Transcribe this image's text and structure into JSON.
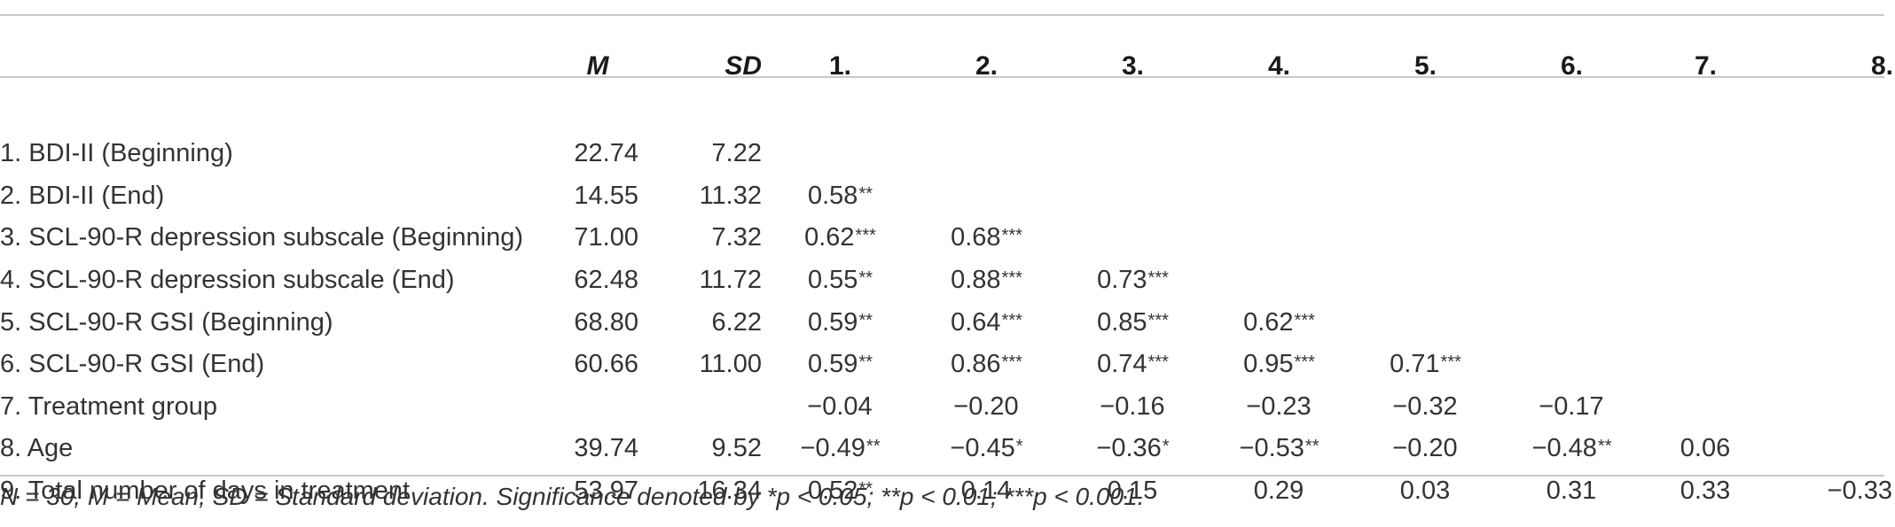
{
  "columns": [
    "M",
    "SD",
    "1.",
    "2.",
    "3.",
    "4.",
    "5.",
    "6.",
    "7.",
    "8."
  ],
  "rows": [
    {
      "label": "1. BDI-II (Beginning)",
      "m": "22.74",
      "sd": "7.22",
      "c": [
        {
          "v": "",
          "s": ""
        },
        {
          "v": "",
          "s": ""
        },
        {
          "v": "",
          "s": ""
        },
        {
          "v": "",
          "s": ""
        },
        {
          "v": "",
          "s": ""
        },
        {
          "v": "",
          "s": ""
        },
        {
          "v": "",
          "s": ""
        },
        {
          "v": "",
          "s": ""
        }
      ]
    },
    {
      "label": "2. BDI-II (End)",
      "m": "14.55",
      "sd": "11.32",
      "c": [
        {
          "v": "0.58",
          "s": "**"
        },
        {
          "v": "",
          "s": ""
        },
        {
          "v": "",
          "s": ""
        },
        {
          "v": "",
          "s": ""
        },
        {
          "v": "",
          "s": ""
        },
        {
          "v": "",
          "s": ""
        },
        {
          "v": "",
          "s": ""
        },
        {
          "v": "",
          "s": ""
        }
      ]
    },
    {
      "label": "3. SCL-90-R depression subscale (Beginning)",
      "m": "71.00",
      "sd": "7.32",
      "c": [
        {
          "v": "0.62",
          "s": "***"
        },
        {
          "v": "0.68",
          "s": "***"
        },
        {
          "v": "",
          "s": ""
        },
        {
          "v": "",
          "s": ""
        },
        {
          "v": "",
          "s": ""
        },
        {
          "v": "",
          "s": ""
        },
        {
          "v": "",
          "s": ""
        },
        {
          "v": "",
          "s": ""
        }
      ]
    },
    {
      "label": "4. SCL-90-R depression subscale (End)",
      "m": "62.48",
      "sd": "11.72",
      "c": [
        {
          "v": "0.55",
          "s": "**"
        },
        {
          "v": "0.88",
          "s": "***"
        },
        {
          "v": "0.73",
          "s": "***"
        },
        {
          "v": "",
          "s": ""
        },
        {
          "v": "",
          "s": ""
        },
        {
          "v": "",
          "s": ""
        },
        {
          "v": "",
          "s": ""
        },
        {
          "v": "",
          "s": ""
        }
      ]
    },
    {
      "label": "5. SCL-90-R GSI (Beginning)",
      "m": "68.80",
      "sd": "6.22",
      "c": [
        {
          "v": "0.59",
          "s": "**"
        },
        {
          "v": "0.64",
          "s": "***"
        },
        {
          "v": "0.85",
          "s": "***"
        },
        {
          "v": "0.62",
          "s": "***"
        },
        {
          "v": "",
          "s": ""
        },
        {
          "v": "",
          "s": ""
        },
        {
          "v": "",
          "s": ""
        },
        {
          "v": "",
          "s": ""
        }
      ]
    },
    {
      "label": "6. SCL-90-R GSI (End)",
      "m": "60.66",
      "sd": "11.00",
      "c": [
        {
          "v": "0.59",
          "s": "**"
        },
        {
          "v": "0.86",
          "s": "***"
        },
        {
          "v": "0.74",
          "s": "***"
        },
        {
          "v": "0.95",
          "s": "***"
        },
        {
          "v": "0.71",
          "s": "***"
        },
        {
          "v": "",
          "s": ""
        },
        {
          "v": "",
          "s": ""
        },
        {
          "v": "",
          "s": ""
        }
      ]
    },
    {
      "label": "7. Treatment group",
      "m": "",
      "sd": "",
      "c": [
        {
          "v": "−0.04",
          "s": ""
        },
        {
          "v": "−0.20",
          "s": ""
        },
        {
          "v": "−0.16",
          "s": ""
        },
        {
          "v": "−0.23",
          "s": ""
        },
        {
          "v": "−0.32",
          "s": ""
        },
        {
          "v": "−0.17",
          "s": ""
        },
        {
          "v": "",
          "s": ""
        },
        {
          "v": "",
          "s": ""
        }
      ]
    },
    {
      "label": "8. Age",
      "m": "39.74",
      "sd": "9.52",
      "c": [
        {
          "v": "−0.49",
          "s": "**"
        },
        {
          "v": "−0.45",
          "s": "*"
        },
        {
          "v": "−0.36",
          "s": "*"
        },
        {
          "v": "−0.53",
          "s": "**"
        },
        {
          "v": "−0.20",
          "s": ""
        },
        {
          "v": "−0.48",
          "s": "**"
        },
        {
          "v": "0.06",
          "s": ""
        },
        {
          "v": "",
          "s": ""
        }
      ]
    },
    {
      "label": "9. Total number of days in treatment",
      "m": "53.97",
      "sd": "16.34",
      "c": [
        {
          "v": "0.52",
          "s": "**"
        },
        {
          "v": "0.14",
          "s": ""
        },
        {
          "v": "0.15",
          "s": ""
        },
        {
          "v": "0.29",
          "s": ""
        },
        {
          "v": "0.03",
          "s": ""
        },
        {
          "v": "0.31",
          "s": ""
        },
        {
          "v": "0.33",
          "s": ""
        },
        {
          "v": "−0.33",
          "s": ""
        }
      ]
    }
  ],
  "note": "N = 30, M = Mean, SD = Standard deviation. Significance denoted by *p < 0.05; **p < 0.01; ***p < 0.001."
}
